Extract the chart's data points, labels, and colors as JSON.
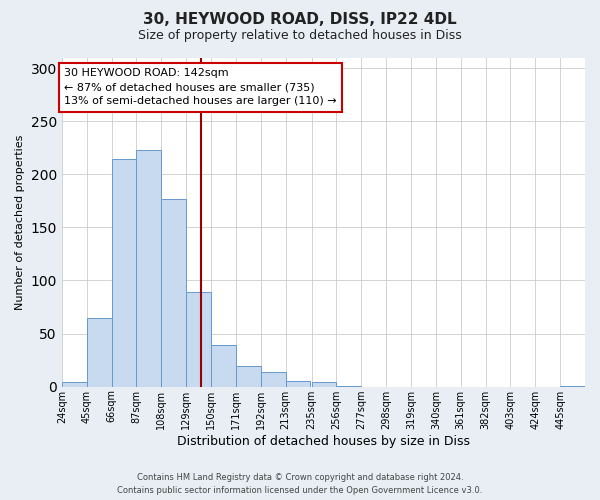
{
  "title": "30, HEYWOOD ROAD, DISS, IP22 4DL",
  "subtitle": "Size of property relative to detached houses in Diss",
  "xlabel": "Distribution of detached houses by size in Diss",
  "ylabel": "Number of detached properties",
  "bin_labels": [
    "24sqm",
    "45sqm",
    "66sqm",
    "87sqm",
    "108sqm",
    "129sqm",
    "150sqm",
    "171sqm",
    "192sqm",
    "213sqm",
    "235sqm",
    "256sqm",
    "277sqm",
    "298sqm",
    "319sqm",
    "340sqm",
    "361sqm",
    "382sqm",
    "403sqm",
    "424sqm",
    "445sqm"
  ],
  "bin_edges": [
    24,
    45,
    66,
    87,
    108,
    129,
    150,
    171,
    192,
    213,
    235,
    256,
    277,
    298,
    319,
    340,
    361,
    382,
    403,
    424,
    445
  ],
  "bar_values": [
    4,
    65,
    214,
    223,
    177,
    89,
    39,
    19,
    14,
    5,
    4,
    1,
    0,
    0,
    0,
    0,
    0,
    0,
    0,
    0,
    1
  ],
  "bar_color": "#c8daf0",
  "bar_edge_color": "#6699cc",
  "vline_x": 142,
  "vline_color": "#990000",
  "annotation_text": "30 HEYWOOD ROAD: 142sqm\n← 87% of detached houses are smaller (735)\n13% of semi-detached houses are larger (110) →",
  "annotation_box_color": "#ffffff",
  "annotation_box_edge_color": "#cc0000",
  "ylim": [
    0,
    310
  ],
  "yticks": [
    0,
    50,
    100,
    150,
    200,
    250,
    300
  ],
  "footer_line1": "Contains HM Land Registry data © Crown copyright and database right 2024.",
  "footer_line2": "Contains public sector information licensed under the Open Government Licence v3.0.",
  "bg_color": "#e8eef4",
  "plot_bg_color": "#ffffff",
  "title_fontsize": 11,
  "subtitle_fontsize": 9,
  "ylabel_fontsize": 8,
  "xlabel_fontsize": 9,
  "tick_fontsize": 7,
  "annotation_fontsize": 8,
  "footer_fontsize": 6
}
